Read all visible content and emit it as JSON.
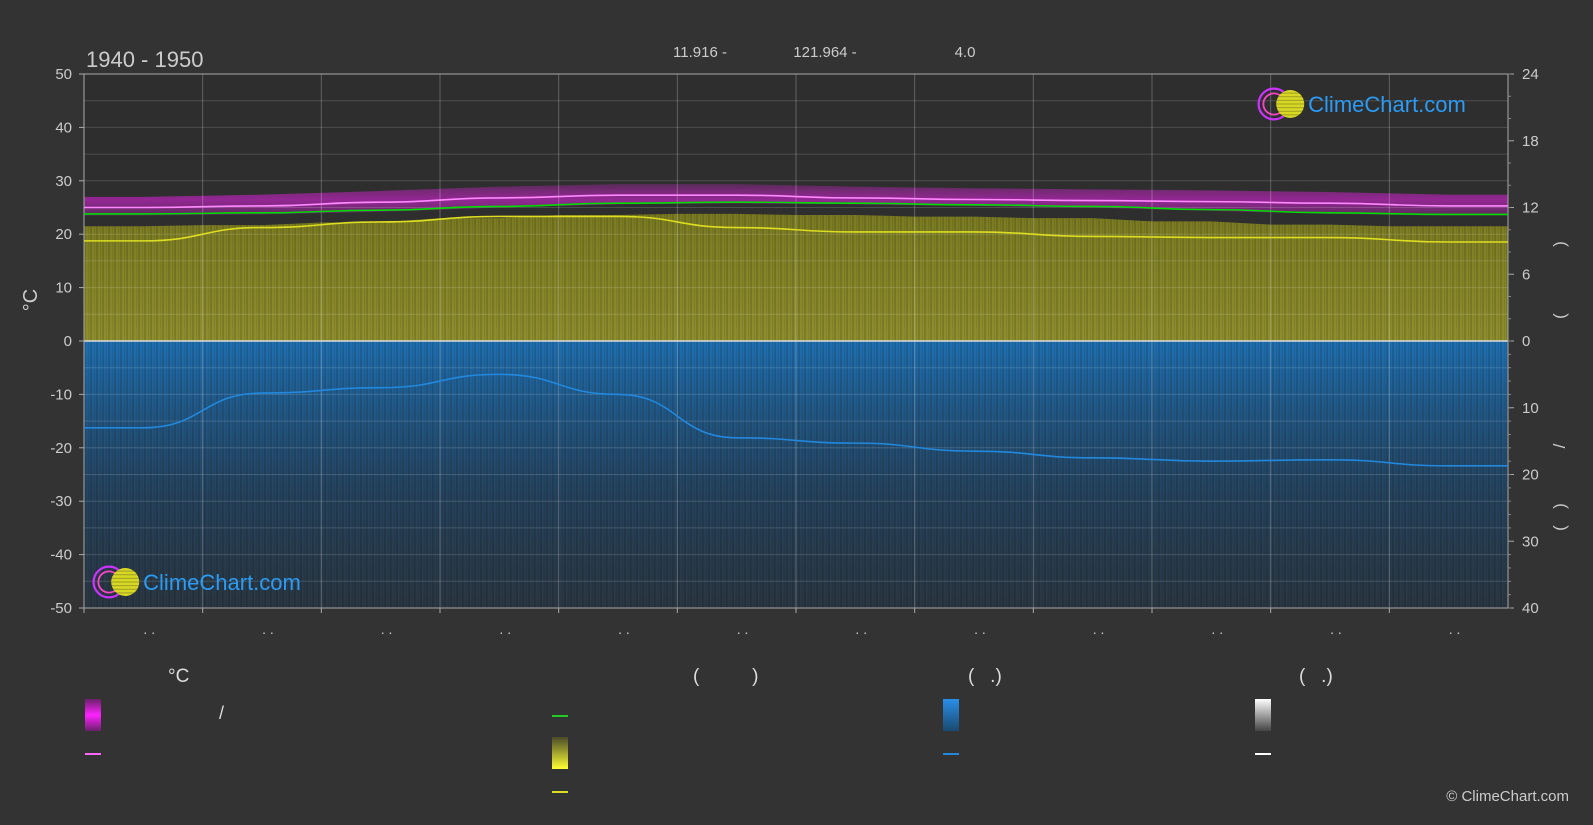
{
  "header": {
    "period": "1940 - 1950",
    "lat_label": "11.916 -",
    "lon_label": "121.964 -",
    "elev_label": "4.0"
  },
  "brand": {
    "logo_text": "ClimeChart.com",
    "copyright": "© ClimeChart.com"
  },
  "chart_data": {
    "type": "area",
    "left_axis": {
      "label": "°C",
      "range": [
        -50,
        50
      ],
      "ticks": [
        50,
        40,
        30,
        20,
        10,
        0,
        -10,
        -20,
        -30,
        -40,
        -50
      ]
    },
    "right_axis_top": {
      "range": [
        0,
        24
      ],
      "ticks": [
        24,
        18,
        12,
        6,
        0
      ]
    },
    "right_axis_bottom": {
      "range": [
        0,
        40
      ],
      "ticks": [
        10,
        20,
        30,
        40
      ]
    },
    "right_axis_label_chars": [
      ")",
      "(",
      "/",
      ")",
      "("
    ],
    "month_ticks": [
      ". .",
      ". .",
      ". .",
      ". .",
      ". .",
      ". .",
      ". .",
      ". .",
      ". .",
      ". .",
      ". .",
      ". ."
    ],
    "x": [
      0.5,
      1.5,
      2.5,
      3.5,
      4.5,
      5.5,
      6.5,
      7.5,
      8.5,
      9.5,
      10.5,
      11.5
    ],
    "series": [
      {
        "key": "temp_max_line",
        "color": "#ff88ff",
        "values": [
          25.0,
          25.3,
          26.0,
          26.8,
          27.3,
          27.3,
          26.8,
          26.5,
          26.3,
          26.1,
          25.8,
          25.3
        ]
      },
      {
        "key": "temp_mean_line",
        "color": "#00dd00",
        "values": [
          23.8,
          24.0,
          24.5,
          25.2,
          25.8,
          26.0,
          25.8,
          25.5,
          25.2,
          24.6,
          24.0,
          23.7
        ]
      },
      {
        "key": "sunshine_line",
        "color": "#dddd22",
        "unit": "hours",
        "values": [
          9.0,
          10.2,
          10.7,
          11.2,
          11.2,
          10.2,
          9.8,
          9.8,
          9.4,
          9.3,
          9.3,
          8.9
        ]
      },
      {
        "key": "precip_line",
        "color": "#2288dd",
        "unit": "mm",
        "values": [
          13.0,
          7.8,
          7.0,
          5.0,
          8.0,
          14.5,
          15.3,
          16.5,
          17.5,
          18.0,
          17.8,
          18.7
        ]
      }
    ],
    "temp_band": {
      "color": "#cc22cc",
      "low": [
        23.5,
        23.7,
        24.2,
        25.0,
        25.6,
        25.8,
        25.6,
        25.3,
        25.0,
        24.4,
        23.8,
        23.5
      ],
      "high": [
        27.0,
        27.4,
        28.1,
        28.9,
        29.4,
        29.4,
        28.9,
        28.6,
        28.4,
        28.2,
        27.9,
        27.4
      ]
    },
    "precip_fill_color": "#1a6aa8",
    "sunshine_fill_color": "#8a8a2a"
  },
  "legend": {
    "col1": {
      "head": "°C",
      "row1_sep": "/"
    },
    "col2": {
      "head": "(          )"
    },
    "col3": {
      "head": "(   .)"
    },
    "col4": {
      "head": "(   .)"
    }
  }
}
